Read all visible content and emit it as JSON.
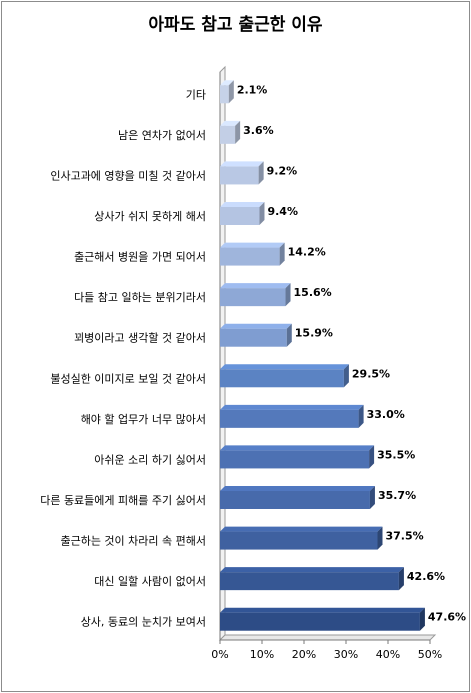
{
  "chart_data": {
    "type": "bar",
    "orientation": "horizontal",
    "title": "아파도 참고 출근한 이유",
    "xlabel": "",
    "ylabel": "",
    "xlim": [
      0,
      50
    ],
    "x_ticks": [
      "0%",
      "10%",
      "20%",
      "30%",
      "40%",
      "50%"
    ],
    "grid": false,
    "categories": [
      "기타",
      "남은 연차가 없어서",
      "인사고과에 영향을 미칠 것 같아서",
      "상사가 쉬지 못하게 해서",
      "출근해서 병원을 가면 되어서",
      "다들 참고 일하는 분위기라서",
      "꾀병이라고 생각할 것 같아서",
      "불성실한 이미지로 보일 것 같아서",
      "해야 할 업무가 너무 많아서",
      "아쉬운 소리 하기 싫어서",
      "다른 동료들에게 피해를 주기 싫어서",
      "출근하는 것이 차라리 속 편해서",
      "대신 일할 사람이 없어서",
      "상사, 동료의 눈치가 보여서"
    ],
    "values": [
      2.1,
      3.6,
      9.2,
      9.4,
      14.2,
      15.6,
      15.9,
      29.5,
      33.0,
      35.5,
      35.7,
      37.5,
      42.6,
      47.6
    ],
    "value_labels": [
      "2.1%",
      "3.6%",
      "9.2%",
      "9.4%",
      "14.2%",
      "15.6%",
      "15.9%",
      "29.5%",
      "33.0%",
      "35.5%",
      "35.7%",
      "37.5%",
      "42.6%",
      "47.6%"
    ],
    "bar_colors": [
      "#c6d2e8",
      "#c3cfe6",
      "#b9c8e4",
      "#b4c4e2",
      "#9fb5dc",
      "#8ea8d6",
      "#7f9dd1",
      "#5b83c3",
      "#5479bb",
      "#4d71b3",
      "#476aab",
      "#3f61a0",
      "#365794",
      "#2d4c86"
    ]
  }
}
